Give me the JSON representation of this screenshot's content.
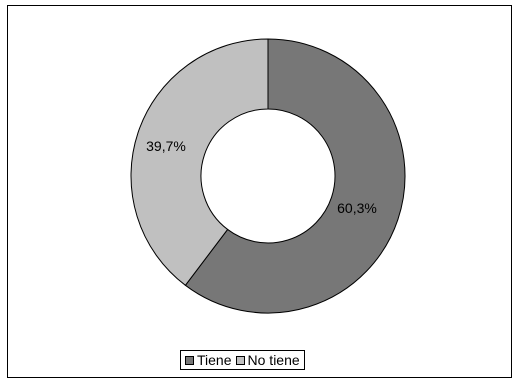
{
  "chart_data": {
    "type": "pie",
    "variant": "donut",
    "categories": [
      "Tiene",
      "No tiene"
    ],
    "values": [
      60.3,
      39.7
    ],
    "data_labels": [
      "60,3%",
      "39,7%"
    ],
    "colors": [
      "#777777",
      "#c0c0c0"
    ],
    "title": "",
    "legend_position": "bottom"
  }
}
